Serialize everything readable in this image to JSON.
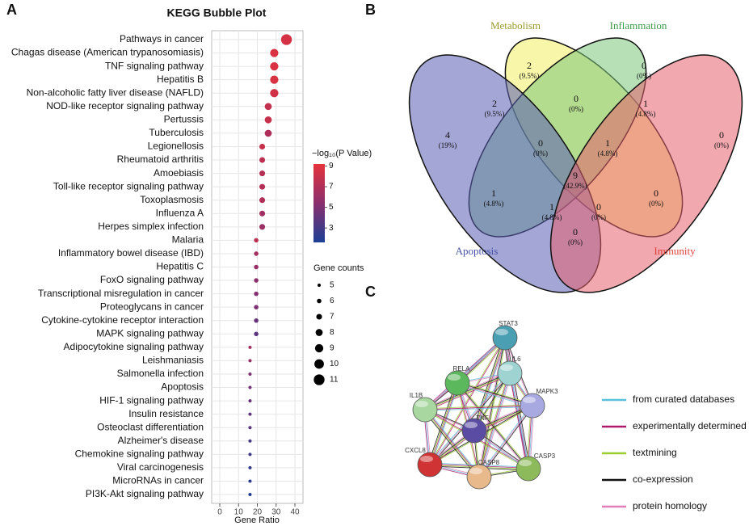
{
  "chart_data": [
    {
      "type": "bubble",
      "panel": "A",
      "title": "KEGG Bubble Plot",
      "categories": [
        "Pathways in cancer",
        "Chagas disease (American trypanosomiasis)",
        "TNF signaling pathway",
        "Hepatitis B",
        "Non-alcoholic fatty liver disease (NAFLD)",
        "NOD-like receptor signaling pathway",
        "Pertussis",
        "Tuberculosis",
        "Legionellosis",
        "Rheumatoid arthritis",
        "Amoebiasis",
        "Toll-like receptor signaling pathway",
        "Toxoplasmosis",
        "Influenza A",
        "Herpes simplex infection",
        "Malaria",
        "Inflammatory bowel disease (IBD)",
        "Hepatitis C",
        "FoxO signaling pathway",
        "Transcriptional misregulation in cancer",
        "Proteoglycans in cancer",
        "Cytokine-cytokine receptor interaction",
        "MAPK signaling pathway",
        "Adipocytokine signaling pathway",
        "Leishmaniasis",
        "Salmonella infection",
        "Apoptosis",
        "HIF-1 signaling pathway",
        "Insulin resistance",
        "Osteoclast differentiation",
        "Alzheimer's disease",
        "Chemokine signaling pathway",
        "Viral carcinogenesis",
        "MicroRNAs in cancer",
        "PI3K-Akt signaling pathway"
      ],
      "values": [
        35.5,
        29,
        29,
        29,
        29,
        25.8,
        25.8,
        25.8,
        22.6,
        22.6,
        22.6,
        22.6,
        22.6,
        22.6,
        22.6,
        19.4,
        19.4,
        19.4,
        19.4,
        19.4,
        19.4,
        19.4,
        19.4,
        16.1,
        16.1,
        16.1,
        16.1,
        16.1,
        16.1,
        16.1,
        16.1,
        16.1,
        16.1,
        16.1,
        16.1
      ],
      "sizes": [
        11,
        9,
        9,
        9,
        9,
        8,
        8,
        8,
        7,
        7,
        7,
        7,
        7,
        7,
        7,
        6,
        6,
        6,
        6,
        6,
        6,
        6,
        6,
        5,
        5,
        5,
        5,
        5,
        5,
        5,
        5,
        5,
        5,
        5,
        5
      ],
      "pvalues": [
        8.5,
        8.7,
        8.7,
        8.6,
        8.3,
        7.8,
        7.9,
        6.9,
        7.9,
        7.5,
        7.2,
        7.2,
        7.0,
        6.3,
        6.1,
        7.5,
        6.5,
        6.0,
        5.5,
        5.2,
        5.0,
        4.2,
        3.8,
        6.5,
        6.0,
        5.0,
        4.5,
        4.2,
        4.0,
        3.8,
        3.0,
        2.8,
        2.5,
        2.2,
        1.8
      ],
      "xlabel": "Gene Ratio",
      "xlim": [
        -4.3,
        44.3
      ],
      "xticks": [
        0,
        10,
        20,
        30,
        40
      ],
      "grid": true,
      "colorbar_title": "−log₁₀(P Value)",
      "clim": [
        1.6,
        9.2
      ],
      "cticks": [
        3,
        5,
        7,
        9
      ],
      "colorscale": [
        "#1b3f94",
        "#8a2f6e",
        "#e5323b"
      ],
      "size_title": "Gene counts",
      "size_legend": [
        5,
        6,
        7,
        8,
        9,
        10,
        11
      ]
    },
    {
      "type": "venn",
      "panel": "B",
      "sets": [
        {
          "name": "Metabolism",
          "color": "#f2ee62",
          "label_color": "#9a9a2a"
        },
        {
          "name": "Inflammation",
          "color": "#7cc77a",
          "label_color": "#3c9a48"
        },
        {
          "name": "Apoptosis",
          "color": "#5a5cb4",
          "label_color": "#4652a6"
        },
        {
          "name": "Immunity",
          "color": "#e5606d",
          "label_color": "#e0403b"
        }
      ],
      "values": [
        2,
        0,
        4,
        0,
        0,
        2,
        1,
        0,
        1,
        9,
        1,
        0,
        1,
        0,
        0
      ],
      "percents": [
        9.5,
        0,
        19,
        0,
        0,
        9.5,
        4.8,
        0,
        4.8,
        42.9,
        4.8,
        0,
        4.8,
        0,
        0
      ],
      "percent_labels": [
        "(9.5%)",
        "(0%)",
        "(19%)",
        "(0%)",
        "(0%)",
        "(9.5%)",
        "(4.8%)",
        "(0%)",
        "(4.8%)",
        "(42.9%)",
        "(4.8%)",
        "(0%)",
        "(4.8%)",
        "(0%)",
        "(0%)"
      ]
    },
    {
      "type": "network",
      "panel": "C",
      "nodes": [
        {
          "label": "STAT3",
          "color": "#4a9fb2"
        },
        {
          "label": "IL6",
          "color": "#9fd3d2"
        },
        {
          "label": "RELA",
          "color": "#5cb85c"
        },
        {
          "label": "MAPK3",
          "color": "#a9a9e2"
        },
        {
          "label": "IL1B",
          "color": "#a8d8a0"
        },
        {
          "label": "TNF",
          "color": "#5a4ca2"
        },
        {
          "label": "CXCL8",
          "color": "#d03333"
        },
        {
          "label": "CASP8",
          "color": "#e8b98a"
        },
        {
          "label": "CASP3",
          "color": "#8dba5a"
        }
      ],
      "legend": [
        {
          "label": "from curated databases",
          "color": "#5bc0de"
        },
        {
          "label": "experimentally determined",
          "color": "#b0196b"
        },
        {
          "label": "textmining",
          "color": "#9acd32"
        },
        {
          "label": "co-expression",
          "color": "#111111"
        },
        {
          "label": "protein homology",
          "color": "#e07fb8"
        }
      ]
    }
  ]
}
